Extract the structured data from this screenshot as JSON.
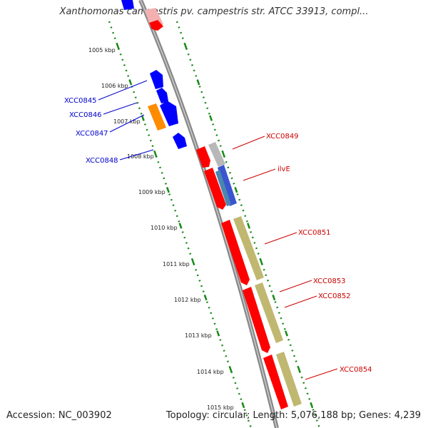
{
  "header": {
    "title": "Xanthomonas campestris pv. campestris str. ATCC 33913, compl..."
  },
  "footer": {
    "accession": "Accession: NC_003902",
    "summary": "Topology: circular; Length: 5,076,188 bp; Genes: 4,239"
  },
  "colors": {
    "forward_gene": "#0000ff",
    "reverse_gene": "#ff0000",
    "orange_gene": "#ff8c00",
    "olive_feature": "#c0b870",
    "gray_feature": "#b8b8b8",
    "backbone": "#888888",
    "tick": "#1a8a1a",
    "label_forward": "#0000cc",
    "label_reverse": "#cc0000"
  },
  "kbp_ticks": [
    "1005 kbp",
    "1006 kbp",
    "1007 kbp",
    "1008 kbp",
    "1009 kbp",
    "1010 kbp",
    "1011 kbp",
    "1012 kbp",
    "1013 kbp",
    "1014 kbp",
    "1015 kbp"
  ],
  "gene_labels": {
    "XCC0845": "XCC0845",
    "XCC0846": "XCC0846",
    "XCC0847": "XCC0847",
    "XCC0848": "XCC0848",
    "XCC0849": "XCC0849",
    "ilvE": "ilvE",
    "XCC0851": "XCC0851",
    "XCC0853": "XCC0853",
    "XCC0852": "XCC0852",
    "XCC0854": "XCC0854"
  }
}
